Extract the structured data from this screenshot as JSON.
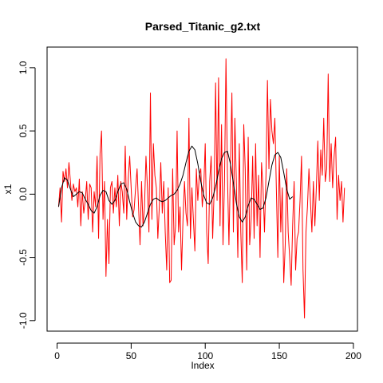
{
  "chart_data": {
    "type": "line",
    "title": "Parsed_Titanic_g2.txt",
    "xlabel": "Index",
    "ylabel": "x1",
    "xlim": [
      1,
      195
    ],
    "ylim": [
      -1.0,
      1.08
    ],
    "x_ticks": [
      0,
      50,
      100,
      150,
      200
    ],
    "y_ticks": [
      -1.0,
      -0.5,
      0.0,
      0.5,
      1.0
    ],
    "x_tick_labels": [
      "0",
      "50",
      "100",
      "150",
      "200"
    ],
    "y_tick_labels": [
      "-1.0",
      "-0.5",
      "0.0",
      "0.5",
      "1.0"
    ],
    "grid": false,
    "series": [
      {
        "color": "#ff0000",
        "x_start": 1,
        "x_step": 1,
        "values": [
          -0.1,
          0.05,
          -0.22,
          0.18,
          0.1,
          0.2,
          0.05,
          0.25,
          0.1,
          -0.05,
          0.08,
          0.02,
          0.05,
          -0.1,
          0.12,
          -0.25,
          0.02,
          -0.15,
          -0.05,
          0.1,
          -0.2,
          0.08,
          0.05,
          -0.3,
          0.02,
          -0.1,
          0.3,
          -0.35,
          0.32,
          0.5,
          -0.2,
          0.1,
          -0.65,
          -0.2,
          -0.55,
          0.05,
          0.1,
          -0.15,
          0.05,
          -0.1,
          0.15,
          -0.25,
          0.1,
          0.02,
          -0.15,
          0.38,
          -0.2,
          0.12,
          0.3,
          0.05,
          -0.18,
          -0.12,
          0.05,
          0.2,
          -0.1,
          -0.4,
          0.1,
          -0.25,
          -0.1,
          0.3,
          0.05,
          -0.3,
          0.8,
          -0.2,
          0.4,
          0.15,
          0.05,
          -0.35,
          -0.1,
          0.25,
          -0.15,
          0.1,
          -0.3,
          -0.6,
          0.05,
          -0.7,
          -0.68,
          0.2,
          -0.4,
          -0.25,
          0.5,
          -0.3,
          -0.1,
          -0.6,
          -0.2,
          0.1,
          -0.15,
          -0.25,
          0.6,
          -0.35,
          0.05,
          -0.2,
          -0.45,
          0.2,
          -0.05,
          0.15,
          0.2,
          -0.1,
          0.05,
          0.4,
          -0.3,
          -0.55,
          0.1,
          0.3,
          -0.35,
          0.02,
          0.88,
          -0.05,
          0.92,
          -0.25,
          0.55,
          -0.4,
          0.1,
          1.07,
          0.15,
          -0.4,
          0.2,
          0.8,
          -0.3,
          0.6,
          0.1,
          -0.5,
          0.4,
          -0.3,
          -0.7,
          0.55,
          0.2,
          -0.6,
          0.45,
          -0.4,
          -0.2,
          0.3,
          -0.35,
          0.4,
          -0.25,
          0.15,
          -0.5,
          0.25,
          0.05,
          -0.3,
          0.15,
          0.9,
          0.2,
          0.75,
          0.5,
          0.4,
          0.6,
          0.05,
          -0.5,
          0.3,
          -0.3,
          0.05,
          -0.7,
          -0.4,
          0.2,
          -0.3,
          -0.5,
          -0.72,
          -0.25,
          0.1,
          -0.6,
          -0.35,
          -0.3,
          -0.05,
          0.3,
          -0.6,
          -0.98,
          -0.3,
          -0.1,
          0.2,
          -0.05,
          -0.3,
          0.1,
          -0.25,
          0.05,
          0.42,
          -0.05,
          0.35,
          0.15,
          0.6,
          0.1,
          0.2,
          0.95,
          0.1,
          0.4,
          0.05,
          0.3,
          0.45,
          -0.2,
          0.15,
          -0.05,
          0.1,
          -0.22,
          0.05
        ]
      },
      {
        "color": "#000000",
        "x_start": 1,
        "x_step": 2,
        "values": [
          -0.1,
          0.05,
          0.13,
          0.11,
          0.04,
          -0.02,
          0.0,
          0.02,
          0.01,
          -0.04,
          -0.08,
          -0.13,
          -0.15,
          -0.1,
          -0.01,
          0.03,
          0.02,
          -0.05,
          -0.08,
          -0.05,
          0.02,
          0.08,
          0.09,
          0.04,
          -0.06,
          -0.15,
          -0.22,
          -0.25,
          -0.26,
          -0.22,
          -0.15,
          -0.08,
          -0.04,
          -0.03,
          -0.05,
          -0.06,
          -0.05,
          -0.03,
          -0.01,
          0.0,
          0.03,
          0.08,
          0.15,
          0.25,
          0.34,
          0.38,
          0.35,
          0.24,
          0.1,
          -0.01,
          -0.07,
          -0.08,
          -0.03,
          0.06,
          0.18,
          0.28,
          0.33,
          0.34,
          0.24,
          0.09,
          -0.07,
          -0.18,
          -0.22,
          -0.18,
          -0.09,
          -0.03,
          -0.04,
          -0.08,
          -0.12,
          -0.11,
          -0.03,
          0.1,
          0.23,
          0.31,
          0.33,
          0.29,
          0.17,
          0.04,
          -0.04,
          -0.02
        ]
      }
    ]
  }
}
